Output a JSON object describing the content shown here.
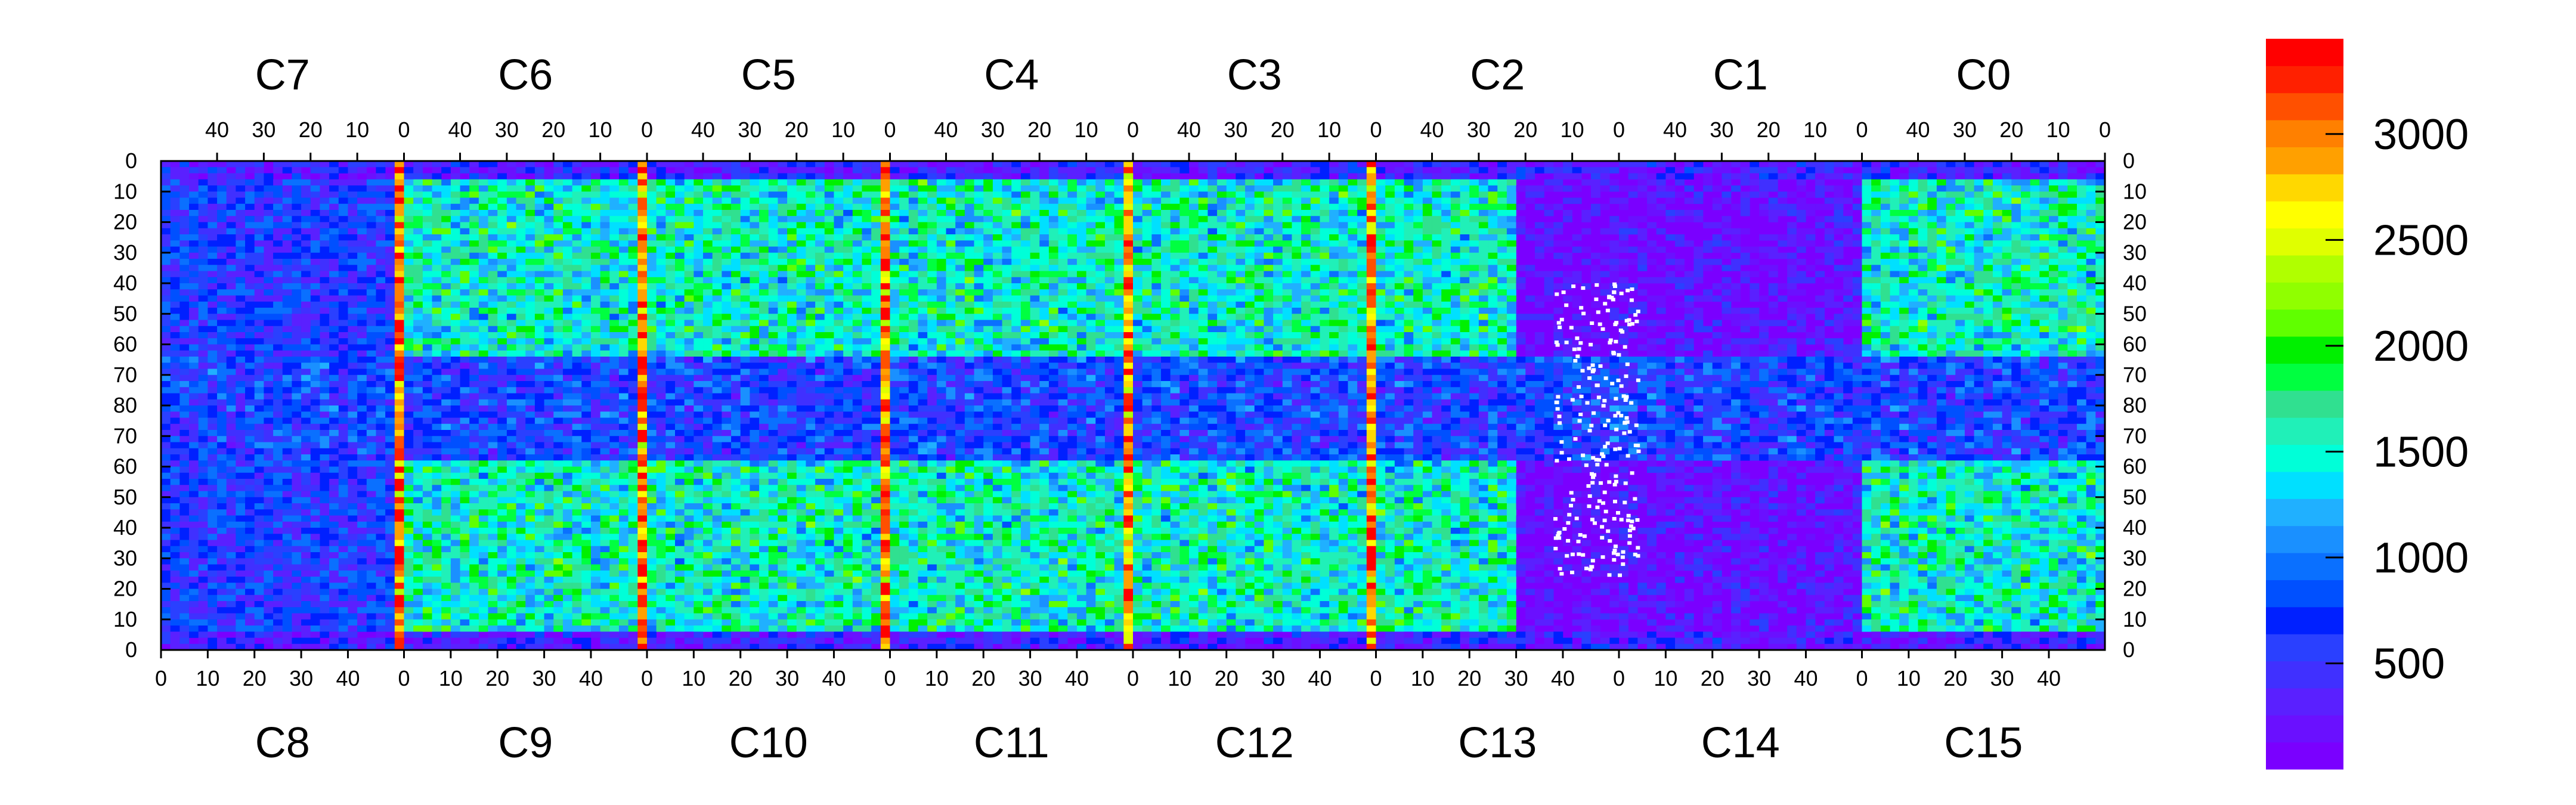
{
  "chart_data": {
    "type": "heatmap",
    "title": "",
    "xlabel": "",
    "ylabel": "",
    "colorbar": {
      "ticks": [
        500,
        1000,
        1500,
        2000,
        2500,
        3000
      ],
      "range": [
        0,
        3450
      ],
      "colors": [
        "#7a00ff",
        "#6a10ff",
        "#5a20ff",
        "#4030ff",
        "#2a40ff",
        "#0020ff",
        "#0050ff",
        "#0a70ff",
        "#1a90ff",
        "#20b0ff",
        "#00e0ff",
        "#00ffd8",
        "#20f0b8",
        "#30e090",
        "#00ff40",
        "#00f000",
        "#60ff00",
        "#90ff00",
        "#b0ff00",
        "#e0ff00",
        "#ffff00",
        "#ffd800",
        "#ffa000",
        "#ff8000",
        "#ff5000",
        "#ff2000",
        "#ff0000"
      ]
    },
    "top_chips": [
      "C7",
      "C6",
      "C5",
      "C4",
      "C3",
      "C2",
      "C1",
      "C0"
    ],
    "bottom_chips": [
      "C8",
      "C9",
      "C10",
      "C11",
      "C12",
      "C13",
      "C14",
      "C15"
    ],
    "top_col_ticks": [
      "40",
      "30",
      "20",
      "10",
      "0"
    ],
    "bottom_col_ticks": [
      "0",
      "10",
      "20",
      "30",
      "40"
    ],
    "left_row_ticks": [
      "0",
      "10",
      "20",
      "30",
      "40",
      "50",
      "60",
      "70",
      "80",
      "70",
      "60",
      "50",
      "40",
      "30",
      "20",
      "10",
      "0"
    ],
    "right_row_ticks": [
      "0",
      "10",
      "20",
      "30",
      "40",
      "50",
      "60",
      "70",
      "80",
      "70",
      "60",
      "50",
      "40",
      "30",
      "20",
      "10",
      "0"
    ],
    "grid": {
      "columns_per_chip": 52,
      "rows_per_half": 80,
      "chips_per_row": 8
    },
    "notes_visible": "Hot (red/orange) columns at chip boundaries; low-occupancy region in C13/C2 with white empty pixels."
  }
}
